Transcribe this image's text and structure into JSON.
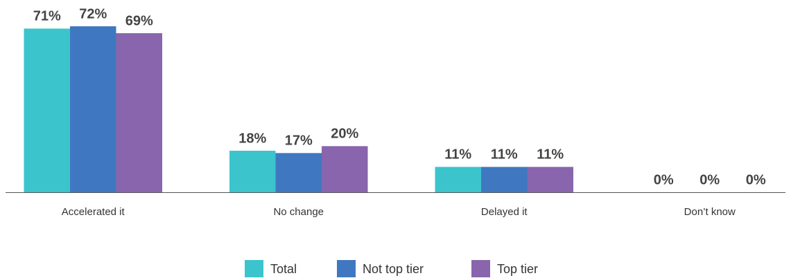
{
  "chart_data": {
    "type": "bar",
    "categories": [
      "Accelerated it",
      "No change",
      "Delayed it",
      "Don’t know"
    ],
    "series": [
      {
        "name": "Total",
        "color": "#3bc4cc",
        "values": [
          71,
          18,
          11,
          0
        ],
        "value_labels": [
          "71%",
          "18%",
          "11%",
          "0%"
        ]
      },
      {
        "name": "Not top tier",
        "color": "#3f78c0",
        "values": [
          72,
          17,
          11,
          0
        ],
        "value_labels": [
          "72%",
          "17%",
          "11%",
          "0%"
        ]
      },
      {
        "name": "Top tier",
        "color": "#8865ac",
        "values": [
          69,
          20,
          11,
          0
        ],
        "value_labels": [
          "69%",
          "20%",
          "11%",
          "0%"
        ]
      }
    ]
  }
}
